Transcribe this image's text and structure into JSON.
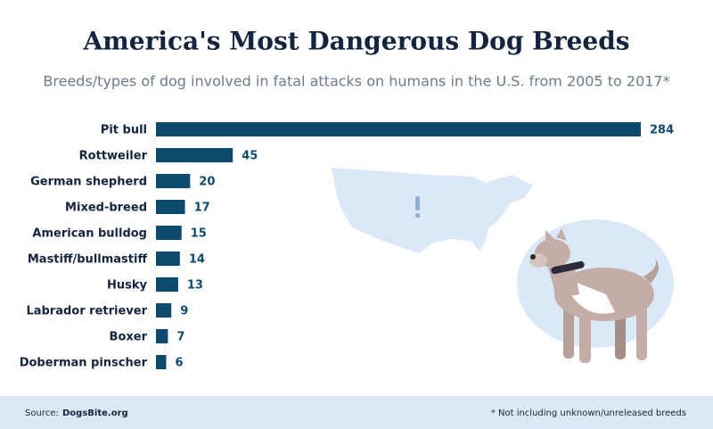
{
  "chart_data": {
    "type": "bar",
    "orientation": "horizontal",
    "title": "America's Most Dangerous Dog Breeds",
    "subtitle": "Breeds/types of dog involved in fatal attacks on humans in the U.S. from 2005 to 2017*",
    "categories": [
      "Pit bull",
      "Rottweiler",
      "German shepherd",
      "Mixed-breed",
      "American bulldog",
      "Mastiff/bullmastiff",
      "Husky",
      "Labrador retriever",
      "Boxer",
      "Doberman pinscher"
    ],
    "values": [
      284,
      45,
      20,
      17,
      15,
      14,
      13,
      9,
      7,
      6
    ],
    "color": "#0e4a6e",
    "xlim": [
      0,
      284
    ]
  },
  "footer": {
    "source_label": "Source:",
    "source": "DogsBite.org",
    "note": "* Not including unknown/unreleased breeds"
  }
}
